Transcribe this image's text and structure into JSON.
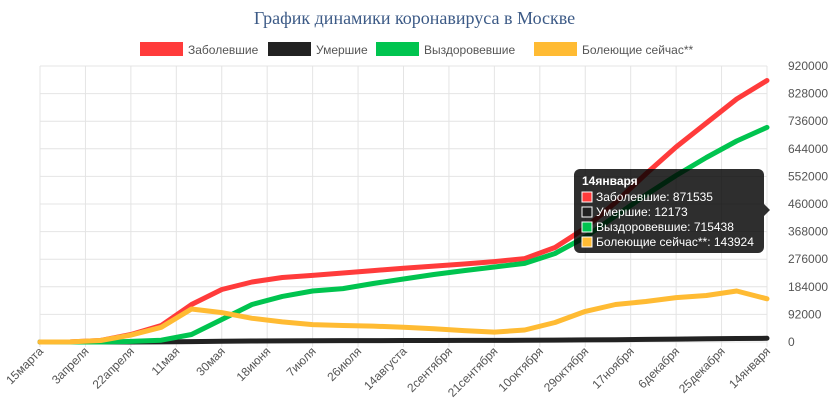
{
  "title": "График динамики коронавируса в Москве",
  "chart_data": {
    "type": "line",
    "title": "График динамики коронавируса в Москве",
    "ylim": [
      0,
      920000
    ],
    "yticks": [
      0,
      92000,
      184000,
      276000,
      368000,
      460000,
      552000,
      644000,
      736000,
      828000,
      920000
    ],
    "grid": true,
    "legend_position": "top",
    "x_tick_labels": [
      "15марта",
      "3апреля",
      "22апреля",
      "11мая",
      "30мая",
      "18июня",
      "7июля",
      "26июля",
      "14августа",
      "2сентября",
      "21сентября",
      "10октября",
      "29октября",
      "17ноября",
      "6декабря",
      "25декабря",
      "14января"
    ],
    "series": [
      {
        "name": "Заболевшие",
        "color": "#ff3b3b",
        "values": [
          0,
          500,
          5000,
          25000,
          55000,
          125000,
          175000,
          200000,
          215000,
          222000,
          230000,
          238000,
          246000,
          253000,
          260000,
          268000,
          278000,
          315000,
          380000,
          465000,
          560000,
          650000,
          730000,
          810000,
          871535
        ]
      },
      {
        "name": "Умершие",
        "color": "#222222",
        "values": [
          0,
          0,
          0,
          0,
          200,
          1500,
          2500,
          3300,
          3800,
          4200,
          4500,
          4700,
          4900,
          5100,
          5300,
          5500,
          5700,
          6200,
          6900,
          7800,
          8800,
          9800,
          10800,
          11600,
          12173
        ]
      },
      {
        "name": "Выздоровевшие",
        "color": "#00c44f",
        "values": [
          0,
          0,
          0,
          2000,
          6000,
          25000,
          75000,
          125000,
          152000,
          170000,
          178000,
          195000,
          210000,
          225000,
          238000,
          250000,
          262000,
          295000,
          350000,
          420000,
          490000,
          555000,
          615000,
          670000,
          715438
        ]
      },
      {
        "name": "Болеющие сейчас**",
        "color": "#ffbb33",
        "values": [
          0,
          500,
          5000,
          23000,
          49000,
          110000,
          98000,
          79000,
          67000,
          58000,
          55000,
          53000,
          49000,
          44000,
          38000,
          33000,
          40000,
          65000,
          102000,
          125000,
          135000,
          148000,
          155000,
          170000,
          143924
        ]
      }
    ],
    "tooltip": {
      "title": "14января",
      "lines": [
        "Заболевшие: 871535",
        "Умершие: 12173",
        "Выздоровевшие: 715438",
        "Болеющие сейчас**: 143924"
      ]
    }
  }
}
